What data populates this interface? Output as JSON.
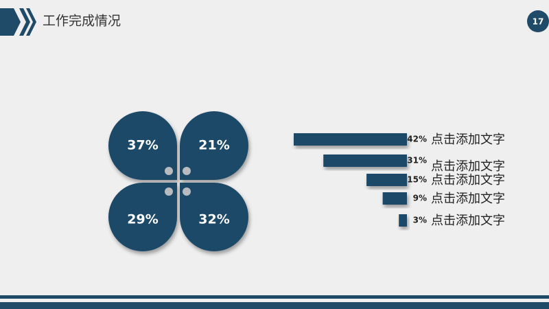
{
  "header": {
    "title": "工作完成情况",
    "page": "17"
  },
  "chart_data": [
    {
      "type": "petal",
      "values": [
        37,
        21,
        29,
        32
      ],
      "value_labels": [
        "37%",
        "21%",
        "29%",
        "32%"
      ],
      "color": "#1f4a68"
    },
    {
      "type": "hbar",
      "categories": [
        "点击添加文字",
        "点击添加文字",
        "点击添加文字",
        "点击添加文字",
        "点击添加文字"
      ],
      "values": [
        42,
        31,
        15,
        9,
        3
      ],
      "value_labels": [
        "42%",
        "31%",
        "15%",
        "9%",
        "3%"
      ],
      "color": "#1f4a68"
    }
  ]
}
